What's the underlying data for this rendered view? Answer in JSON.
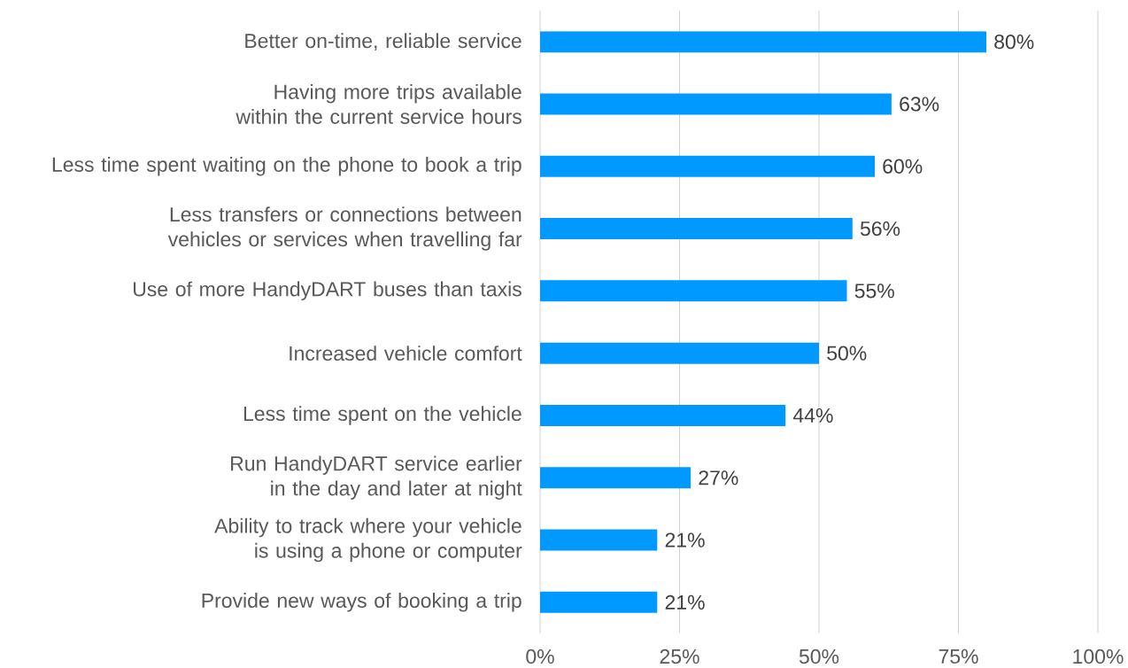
{
  "chart_data": {
    "type": "bar",
    "orientation": "horizontal",
    "categories": [
      "Better on-time, reliable service",
      "Having more trips available within the current service hours",
      "Less time spent waiting on the phone to book a trip",
      "Less transfers or connections between vehicles or services when travelling far",
      "Use of more HandyDART buses than taxis",
      "Increased vehicle comfort",
      "Less time spent on the vehicle",
      "Run HandyDART service earlier in the day and later at night",
      "Ability to track where your vehicle is using a phone or computer",
      "Provide new ways of booking a trip"
    ],
    "values": [
      80,
      63,
      60,
      56,
      55,
      50,
      44,
      27,
      21,
      21
    ],
    "value_labels": [
      "80%",
      "63%",
      "60%",
      "56%",
      "55%",
      "50%",
      "44%",
      "27%",
      "21%",
      "21%"
    ],
    "color": "#0099ff",
    "xlim": [
      0,
      100
    ],
    "xticks": [
      {
        "value": 0,
        "label": "0%"
      },
      {
        "value": 25,
        "label": "25%"
      },
      {
        "value": 50,
        "label": "50%"
      },
      {
        "value": 75,
        "label": "75%"
      },
      {
        "value": 100,
        "label": "100%"
      }
    ],
    "grid": "x"
  }
}
